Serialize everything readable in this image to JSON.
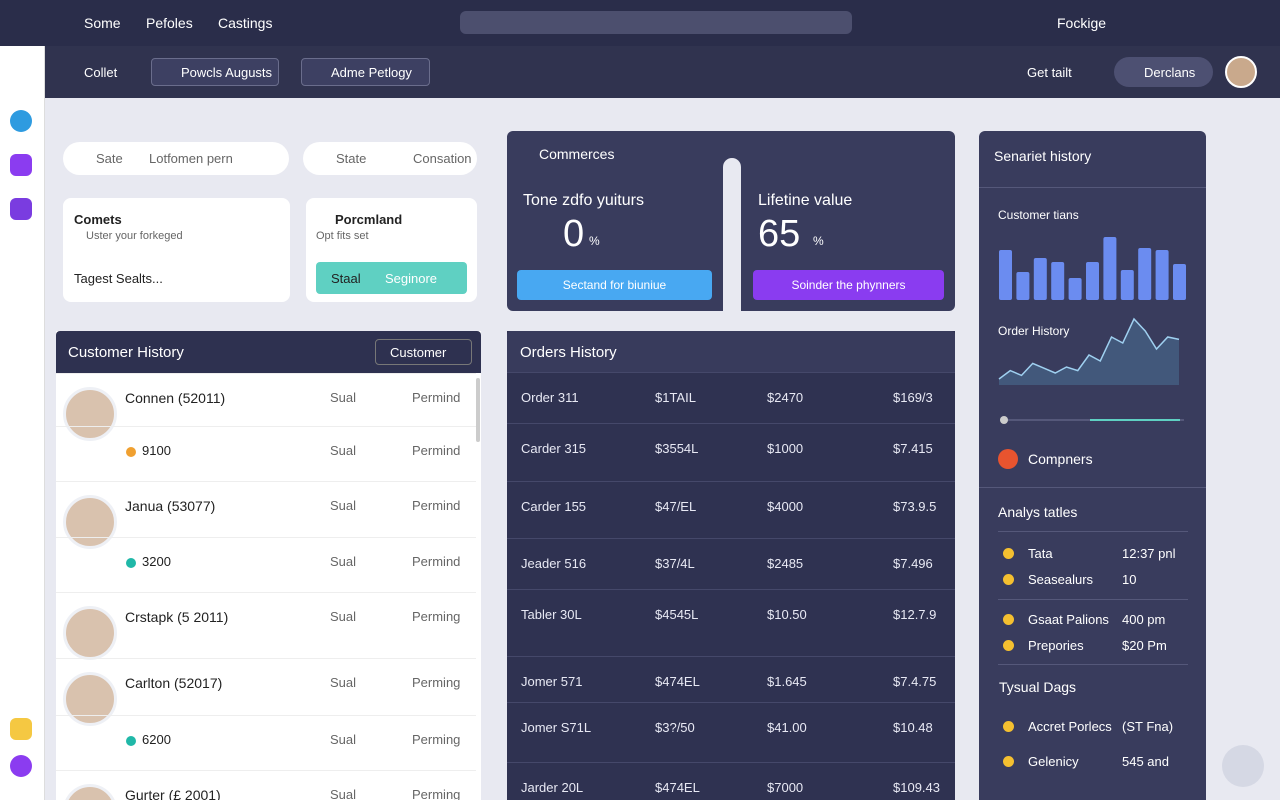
{
  "topbar": {
    "nav": [
      "Some",
      "Pefoles",
      "Castings"
    ],
    "right": "Fockige"
  },
  "toolbar": {
    "items": [
      "Collet",
      "Powcls Augusts",
      "Adme Petlogy"
    ],
    "link": "Get tailt",
    "user": "Derclans"
  },
  "filters": [
    {
      "label": "Sate",
      "value": "Lotfomen pern"
    },
    {
      "label": "State",
      "value": "Consation"
    }
  ],
  "cards": [
    {
      "title": "Comets",
      "subtitle": "Uster your forkeged",
      "action": "Tagest Sealts..."
    },
    {
      "title": "Porcmland",
      "subtitle": "Opt fits set",
      "button_left": "Staal",
      "button_right": "Seginore"
    }
  ],
  "commerce": {
    "title": "Commerces",
    "metrics": [
      {
        "label": "Tone zdfo yuiturs",
        "value": "0",
        "unit": "%",
        "button": "Sectand for biuniue"
      },
      {
        "label": "Lifetine value",
        "value": "65",
        "unit": "%",
        "button": "Soinder the phynners"
      }
    ]
  },
  "customer_history": {
    "title": "Customer History",
    "filter": "Customer",
    "rows": [
      {
        "name": "Connen (52011)",
        "status": "Sual",
        "state": "Permind"
      },
      {
        "amount": "9100",
        "status": "Sual",
        "state": "Permind"
      },
      {
        "name": "Janua (53077)",
        "status": "Sual",
        "state": "Permind"
      },
      {
        "amount": "3200",
        "status": "Sual",
        "state": "Permind"
      },
      {
        "name": "Crstapk (5 2011)",
        "status": "Sual",
        "state": "Perming"
      },
      {
        "name": "Carlton (52017)",
        "status": "Sual",
        "state": "Perming"
      },
      {
        "amount": "6200",
        "status": "Sual",
        "state": "Perming"
      },
      {
        "name": "Gurter (£ 2001)",
        "status": "Sual",
        "state": "Perming"
      }
    ]
  },
  "orders_history": {
    "title": "Orders History",
    "rows": [
      [
        "Order 311",
        "$1TAIL",
        "$2470",
        "$169/3"
      ],
      [
        "Carder 315",
        "$3554L",
        "$1000",
        "$7.415"
      ],
      [
        "Carder 155",
        "$47/EL",
        "$4000",
        "$73.9.5"
      ],
      [
        "Jeader 516",
        "$37/4L",
        "$2485",
        "$7.496"
      ],
      [
        "Tabler 30L",
        "$4545L",
        "$10.50",
        "$12.7.9"
      ],
      [
        "Jomer 571",
        "$474EL",
        "$1.645",
        "$7.4.75"
      ],
      [
        "Jomer S71L",
        "$3?/50",
        "$41.00",
        "$10.48"
      ],
      [
        "Jarder 20L",
        "$474EL",
        "$7000",
        "$109.43"
      ]
    ]
  },
  "side_panel": {
    "title": "Senariet history",
    "trends_label": "Customer tians",
    "trend_bars": [
      50,
      28,
      42,
      38,
      22,
      38,
      63,
      30,
      52,
      50,
      36
    ],
    "order_label": "Order History",
    "order_line": [
      5,
      12,
      8,
      18,
      14,
      10,
      15,
      12,
      25,
      20,
      40,
      35,
      55,
      45,
      30,
      40,
      38
    ],
    "browser": "Compners",
    "analysis_title": "Analys tatles",
    "analysis": [
      [
        "Tata",
        "12:37 pnl"
      ],
      [
        "Seasealurs",
        "10"
      ],
      [
        "Gsaat Palions",
        "400 pm"
      ],
      [
        "Prepories",
        "$20 Pm"
      ]
    ],
    "typical_title": "Tysual Dags",
    "typical": [
      [
        "Accret Porlecs",
        "(ST Fna)"
      ],
      [
        "Gelenicy",
        "545 and"
      ]
    ]
  }
}
